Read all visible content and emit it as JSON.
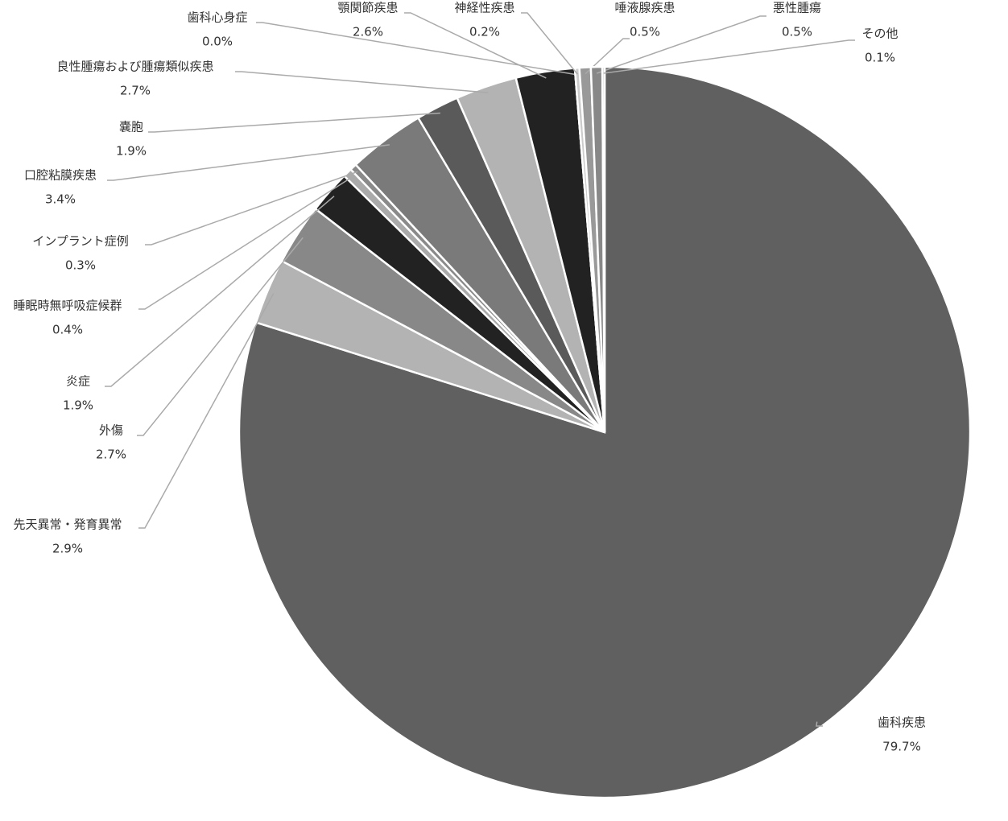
{
  "chart_data": {
    "type": "pie",
    "categories": [
      "歯科疾患",
      "先天異常・発育異常",
      "外傷",
      "炎症",
      "睡眠時無呼吸症候群",
      "インプラント症例",
      "口腔粘膜疾患",
      "嚢胞",
      "良性腫瘍および腫瘍類似疾患",
      "顎関節疾患",
      "歯科心身症",
      "神経性疾患",
      "唾液腺疾患",
      "悪性腫瘍",
      "その他"
    ],
    "values": [
      79.7,
      2.9,
      2.7,
      1.9,
      0.4,
      0.3,
      3.4,
      1.9,
      2.7,
      2.6,
      0.0,
      0.2,
      0.5,
      0.5,
      0.1
    ],
    "value_labels": [
      "79.7%",
      "2.9%",
      "2.7%",
      "1.9%",
      "0.4%",
      "0.3%",
      "3.4%",
      "1.9%",
      "2.7%",
      "2.6%",
      "0.0%",
      "0.2%",
      "0.5%",
      "0.5%",
      "0.1%"
    ],
    "colors": [
      "#606060",
      "#b3b3b3",
      "#888888",
      "#222222",
      "#aaaaaa",
      "#8a8a8a",
      "#7a7a7a",
      "#5a5a5a",
      "#b3b3b3",
      "#222222",
      "#cccccc",
      "#cccccc",
      "#999999",
      "#888888",
      "#aaaaaa"
    ]
  }
}
